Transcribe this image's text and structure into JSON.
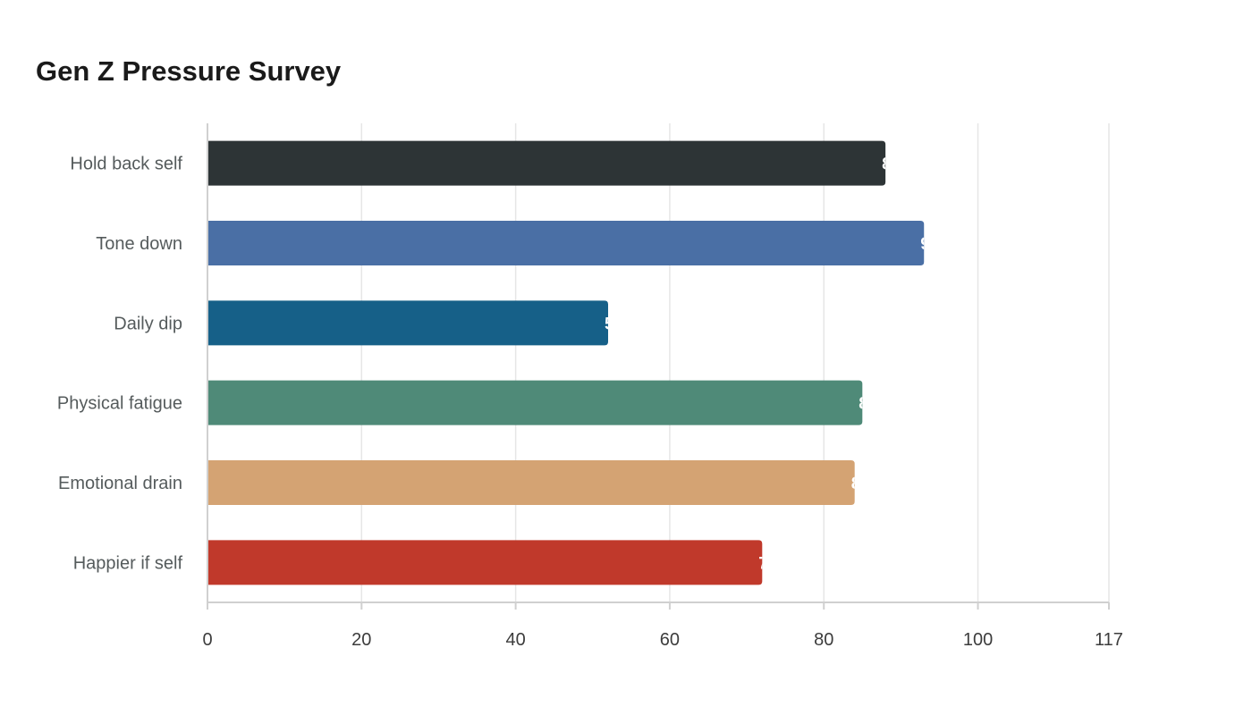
{
  "chart_data": {
    "type": "bar",
    "orientation": "horizontal",
    "title": "Gen Z Pressure Survey",
    "xlabel": "",
    "ylabel": "",
    "categories": [
      "Hold back self",
      "Tone down",
      "Daily dip",
      "Physical fatigue",
      "Emotional drain",
      "Happier if self"
    ],
    "values": [
      88,
      93,
      52,
      85,
      84,
      72
    ],
    "colors": [
      "#2d3436",
      "#4a6fa5",
      "#166088",
      "#4f8a78",
      "#d4a373",
      "#c0392b"
    ],
    "xlim": [
      0,
      117
    ],
    "xticks": [
      0,
      20,
      40,
      60,
      80,
      100,
      117
    ],
    "grid": true,
    "legend": "none"
  }
}
